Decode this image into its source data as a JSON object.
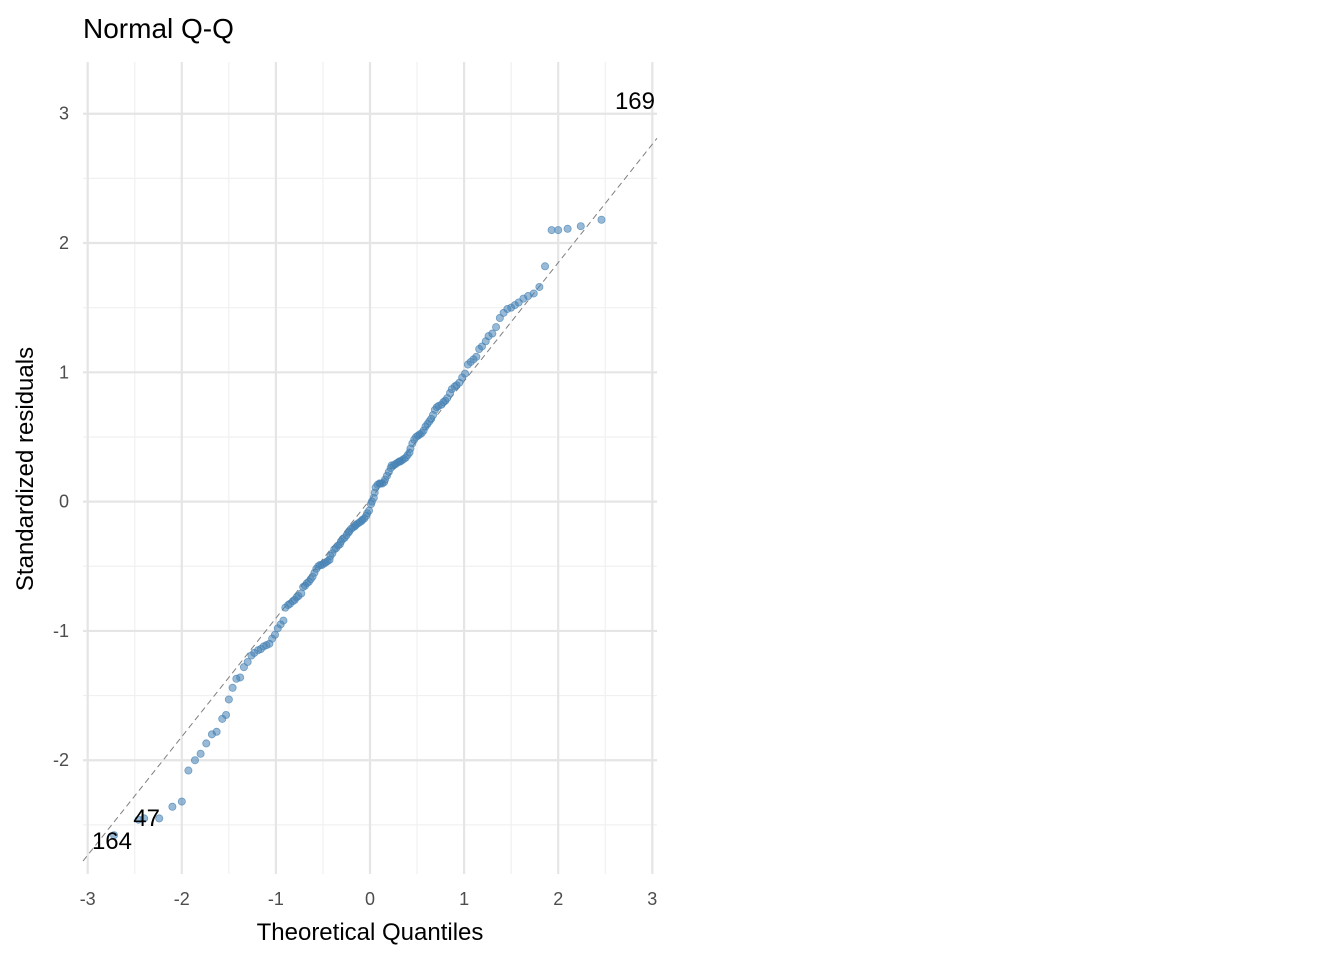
{
  "chart_data": {
    "type": "scatter",
    "title": "Normal Q-Q",
    "xlabel": "Theoretical Quantiles",
    "ylabel": "Standardized residuals",
    "xlim": [
      -3.05,
      3.05
    ],
    "ylim": [
      -2.88,
      3.4
    ],
    "x_ticks": [
      -3,
      -2,
      -1,
      0,
      1,
      2,
      3
    ],
    "y_ticks": [
      -2,
      -1,
      0,
      1,
      2,
      3
    ],
    "x_tick_labels": [
      "-3",
      "-2",
      "-1",
      "0",
      "1",
      "2",
      "3"
    ],
    "y_tick_labels": [
      "-2",
      "-1",
      "0",
      "1",
      "2",
      "3"
    ],
    "grid": true,
    "point_color": "#4682b4",
    "reference_line": {
      "style": "dashed",
      "color": "#7f7f7f",
      "points": [
        [
          -3.05,
          -2.78
        ],
        [
          3.05,
          2.81
        ]
      ]
    },
    "points": [
      [
        -2.72,
        -2.58
      ],
      [
        -2.46,
        -2.46
      ],
      [
        -2.4,
        -2.45
      ],
      [
        -2.24,
        -2.45
      ],
      [
        -2.1,
        -2.36
      ],
      [
        -2.0,
        -2.32
      ],
      [
        -1.93,
        -2.08
      ],
      [
        -1.86,
        -2.0
      ],
      [
        -1.8,
        -1.95
      ],
      [
        -1.74,
        -1.87
      ],
      [
        -1.68,
        -1.8
      ],
      [
        -1.63,
        -1.78
      ],
      [
        -1.57,
        -1.68
      ],
      [
        -1.53,
        -1.65
      ],
      [
        -1.5,
        -1.53
      ],
      [
        -1.46,
        -1.44
      ],
      [
        -1.42,
        -1.37
      ],
      [
        -1.38,
        -1.36
      ],
      [
        -1.34,
        -1.28
      ],
      [
        -1.3,
        -1.24
      ],
      [
        -1.26,
        -1.19
      ],
      [
        -1.23,
        -1.17
      ],
      [
        -1.19,
        -1.15
      ],
      [
        -1.16,
        -1.14
      ],
      [
        -1.13,
        -1.12
      ],
      [
        -1.1,
        -1.11
      ],
      [
        -1.07,
        -1.1
      ],
      [
        -1.04,
        -1.06
      ],
      [
        -1.01,
        -1.03
      ],
      [
        -0.98,
        -0.98
      ],
      [
        -0.95,
        -0.95
      ],
      [
        -0.92,
        -0.92
      ],
      [
        -0.9,
        -0.82
      ],
      [
        -0.87,
        -0.8
      ],
      [
        -0.85,
        -0.79
      ],
      [
        -0.82,
        -0.77
      ],
      [
        -0.8,
        -0.76
      ],
      [
        -0.78,
        -0.74
      ],
      [
        -0.76,
        -0.73
      ],
      [
        -0.73,
        -0.71
      ],
      [
        -0.71,
        -0.66
      ],
      [
        -0.69,
        -0.65
      ],
      [
        -0.67,
        -0.63
      ],
      [
        -0.65,
        -0.62
      ],
      [
        -0.63,
        -0.6
      ],
      [
        -0.61,
        -0.58
      ],
      [
        -0.59,
        -0.55
      ],
      [
        -0.57,
        -0.52
      ],
      [
        -0.55,
        -0.5
      ],
      [
        -0.53,
        -0.49
      ],
      [
        -0.51,
        -0.49
      ],
      [
        -0.49,
        -0.48
      ],
      [
        -0.47,
        -0.47
      ],
      [
        -0.45,
        -0.46
      ],
      [
        -0.43,
        -0.45
      ],
      [
        -0.42,
        -0.42
      ],
      [
        -0.4,
        -0.4
      ],
      [
        -0.38,
        -0.37
      ],
      [
        -0.36,
        -0.36
      ],
      [
        -0.34,
        -0.34
      ],
      [
        -0.32,
        -0.33
      ],
      [
        -0.31,
        -0.31
      ],
      [
        -0.29,
        -0.29
      ],
      [
        -0.27,
        -0.28
      ],
      [
        -0.25,
        -0.26
      ],
      [
        -0.23,
        -0.24
      ],
      [
        -0.22,
        -0.23
      ],
      [
        -0.2,
        -0.21
      ],
      [
        -0.18,
        -0.2
      ],
      [
        -0.16,
        -0.19
      ],
      [
        -0.15,
        -0.18
      ],
      [
        -0.13,
        -0.17
      ],
      [
        -0.11,
        -0.16
      ],
      [
        -0.09,
        -0.15
      ],
      [
        -0.08,
        -0.14
      ],
      [
        -0.06,
        -0.13
      ],
      [
        -0.04,
        -0.11
      ],
      [
        -0.03,
        -0.09
      ],
      [
        -0.01,
        -0.07
      ],
      [
        0.01,
        -0.02
      ],
      [
        0.02,
        0.0
      ],
      [
        0.04,
        0.03
      ],
      [
        0.05,
        0.07
      ],
      [
        0.06,
        0.11
      ],
      [
        0.08,
        0.13
      ],
      [
        0.1,
        0.14
      ],
      [
        0.11,
        0.14
      ],
      [
        0.13,
        0.14
      ],
      [
        0.15,
        0.15
      ],
      [
        0.16,
        0.17
      ],
      [
        0.18,
        0.2
      ],
      [
        0.2,
        0.23
      ],
      [
        0.22,
        0.26
      ],
      [
        0.23,
        0.28
      ],
      [
        0.25,
        0.28
      ],
      [
        0.27,
        0.29
      ],
      [
        0.29,
        0.3
      ],
      [
        0.31,
        0.31
      ],
      [
        0.32,
        0.31
      ],
      [
        0.34,
        0.32
      ],
      [
        0.36,
        0.33
      ],
      [
        0.38,
        0.34
      ],
      [
        0.4,
        0.36
      ],
      [
        0.42,
        0.38
      ],
      [
        0.43,
        0.41
      ],
      [
        0.45,
        0.45
      ],
      [
        0.47,
        0.48
      ],
      [
        0.49,
        0.5
      ],
      [
        0.51,
        0.51
      ],
      [
        0.53,
        0.52
      ],
      [
        0.55,
        0.53
      ],
      [
        0.57,
        0.55
      ],
      [
        0.59,
        0.58
      ],
      [
        0.61,
        0.6
      ],
      [
        0.63,
        0.62
      ],
      [
        0.65,
        0.64
      ],
      [
        0.67,
        0.67
      ],
      [
        0.69,
        0.71
      ],
      [
        0.71,
        0.73
      ],
      [
        0.73,
        0.74
      ],
      [
        0.76,
        0.75
      ],
      [
        0.78,
        0.77
      ],
      [
        0.8,
        0.78
      ],
      [
        0.82,
        0.8
      ],
      [
        0.85,
        0.84
      ],
      [
        0.87,
        0.87
      ],
      [
        0.9,
        0.89
      ],
      [
        0.92,
        0.9
      ],
      [
        0.95,
        0.92
      ],
      [
        0.98,
        0.96
      ],
      [
        1.01,
        0.99
      ],
      [
        1.04,
        1.06
      ],
      [
        1.07,
        1.08
      ],
      [
        1.1,
        1.1
      ],
      [
        1.13,
        1.12
      ],
      [
        1.16,
        1.18
      ],
      [
        1.19,
        1.2
      ],
      [
        1.23,
        1.24
      ],
      [
        1.26,
        1.28
      ],
      [
        1.3,
        1.3
      ],
      [
        1.34,
        1.35
      ],
      [
        1.38,
        1.42
      ],
      [
        1.42,
        1.46
      ],
      [
        1.46,
        1.49
      ],
      [
        1.5,
        1.5
      ],
      [
        1.54,
        1.52
      ],
      [
        1.58,
        1.54
      ],
      [
        1.63,
        1.57
      ],
      [
        1.68,
        1.59
      ],
      [
        1.74,
        1.61
      ],
      [
        1.8,
        1.66
      ],
      [
        1.86,
        1.82
      ],
      [
        1.93,
        2.1
      ],
      [
        2.0,
        2.1
      ],
      [
        2.1,
        2.11
      ],
      [
        2.24,
        2.13
      ],
      [
        2.46,
        2.18
      ]
    ],
    "labeled_points": [
      {
        "label": "169",
        "x": 2.72,
        "y": 2.9
      },
      {
        "label": "47",
        "x": -2.46,
        "y": -2.46
      },
      {
        "label": "164",
        "x": -2.72,
        "y": -2.58
      }
    ]
  }
}
